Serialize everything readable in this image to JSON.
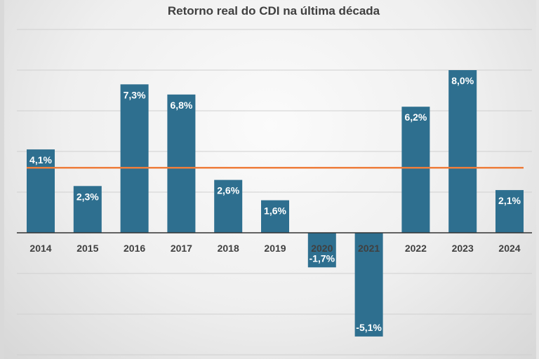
{
  "chart_data": {
    "type": "bar",
    "title": "Retorno real do CDI na última década",
    "categories": [
      "2014",
      "2015",
      "2016",
      "2017",
      "2018",
      "2019",
      "2020",
      "2021",
      "2022",
      "2023",
      "2024"
    ],
    "values": [
      4.1,
      2.3,
      7.3,
      6.8,
      2.6,
      1.6,
      -1.7,
      -5.1,
      6.2,
      8.0,
      2.1
    ],
    "labels": [
      "4,1%",
      "2,3%",
      "7,3%",
      "6,8%",
      "2,6%",
      "1,6%",
      "-1,7%",
      "-5,1%",
      "6,2%",
      "8,0%",
      "2,1%"
    ],
    "average_line": 3.2,
    "ylim": [
      -6,
      10
    ],
    "grid": true,
    "legend": "none",
    "colors": {
      "bar": "#2e6f8f",
      "average_line": "#ee7d3b"
    }
  }
}
